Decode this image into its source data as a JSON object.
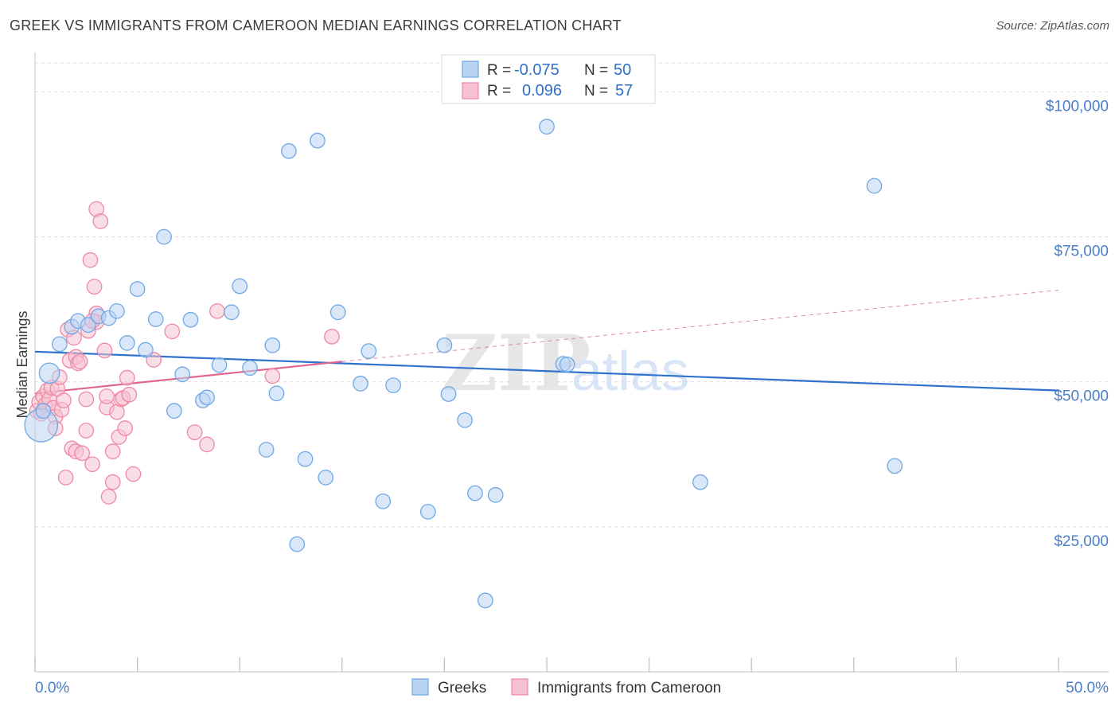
{
  "header": {
    "title": "GREEK VS IMMIGRANTS FROM CAMEROON MEDIAN EARNINGS CORRELATION CHART",
    "source": "Source: ZipAtlas.com"
  },
  "watermark": {
    "zip": "ZIP",
    "atlas": "atlas"
  },
  "colors": {
    "blue": "#6fa8e6",
    "blue_fill": "#b9d3f3",
    "blue_line": "#2f72cc",
    "pink": "#ee88a6",
    "pink_fill": "#f6c2d2",
    "pink_line": "#e0668f",
    "grid": "#d8d8d8",
    "axis_text": "#4a7ec9"
  },
  "stats_legend": {
    "rows": [
      {
        "r_label": "R =",
        "r_value": "-0.075",
        "n_label": "N =",
        "n_value": "50"
      },
      {
        "r_label": "R =",
        "r_value": "0.096",
        "n_label": "N =",
        "n_value": "57"
      }
    ]
  },
  "bottom_legend": [
    "Greeks",
    "Immigrants from Cameroon"
  ],
  "chart_data": {
    "type": "scatter",
    "title": "GREEK VS IMMIGRANTS FROM CAMEROON MEDIAN EARNINGS CORRELATION CHART",
    "xlabel": "",
    "ylabel": "Median Earnings",
    "xlim": [
      0,
      50
    ],
    "ylim": [
      0,
      105000
    ],
    "x_tick_labels": [
      "0.0%",
      "50.0%"
    ],
    "y_ticks": [
      25000,
      50000,
      75000,
      100000
    ],
    "y_tick_labels": [
      "$25,000",
      "$50,000",
      "$75,000",
      "$100,000"
    ],
    "series": [
      {
        "name": "Greeks",
        "color": "blue",
        "trend": {
          "x": [
            0,
            50
          ],
          "y": [
            55200,
            48500
          ],
          "dashed_from": null
        },
        "points": [
          [
            0.3,
            42500,
            18
          ],
          [
            0.7,
            51500,
            11
          ],
          [
            1.2,
            56500,
            8
          ],
          [
            1.8,
            59500,
            8
          ],
          [
            2.1,
            60500,
            8
          ],
          [
            2.6,
            59800,
            8
          ],
          [
            3.1,
            61300,
            8
          ],
          [
            3.6,
            61000,
            8
          ],
          [
            4.0,
            62200,
            8
          ],
          [
            4.5,
            56700,
            8
          ],
          [
            5.0,
            66000,
            8
          ],
          [
            5.4,
            55500,
            8
          ],
          [
            5.9,
            60800,
            8
          ],
          [
            6.3,
            75000,
            8
          ],
          [
            6.8,
            45000,
            8
          ],
          [
            7.2,
            51300,
            8
          ],
          [
            7.6,
            60700,
            8
          ],
          [
            8.2,
            46800,
            8
          ],
          [
            8.4,
            47300,
            8
          ],
          [
            9.0,
            52900,
            8
          ],
          [
            9.6,
            62000,
            8
          ],
          [
            10.0,
            66500,
            8
          ],
          [
            10.5,
            52400,
            8
          ],
          [
            11.3,
            38300,
            8
          ],
          [
            11.6,
            56300,
            8
          ],
          [
            11.8,
            48000,
            8
          ],
          [
            12.4,
            89800,
            8
          ],
          [
            12.8,
            22000,
            8
          ],
          [
            13.2,
            36700,
            8
          ],
          [
            13.8,
            91600,
            8
          ],
          [
            14.2,
            33500,
            8
          ],
          [
            14.8,
            62000,
            8
          ],
          [
            15.9,
            49700,
            8
          ],
          [
            16.3,
            55300,
            8
          ],
          [
            17.0,
            29400,
            8
          ],
          [
            17.5,
            49400,
            8
          ],
          [
            19.2,
            27600,
            8
          ],
          [
            20.0,
            56300,
            8
          ],
          [
            20.2,
            47900,
            8
          ],
          [
            21.0,
            43400,
            8
          ],
          [
            21.5,
            30800,
            8
          ],
          [
            22.0,
            12300,
            8
          ],
          [
            22.5,
            30500,
            8
          ],
          [
            25.0,
            94000,
            8
          ],
          [
            25.8,
            53100,
            8
          ],
          [
            26.0,
            53000,
            8
          ],
          [
            32.5,
            32700,
            8
          ],
          [
            41.0,
            83800,
            8
          ],
          [
            42.0,
            35500,
            8
          ],
          [
            0.4,
            45000,
            8
          ]
        ]
      },
      {
        "name": "Immigrants from Cameroon",
        "color": "pink",
        "trend": {
          "x": [
            0,
            15
          ],
          "y": [
            48000,
            53500
          ],
          "dashed_to": [
            50,
            65800
          ]
        },
        "points": [
          [
            0.1,
            45000,
            8
          ],
          [
            0.2,
            46500,
            8
          ],
          [
            0.3,
            44500,
            8
          ],
          [
            0.4,
            47500,
            8
          ],
          [
            0.5,
            46000,
            8
          ],
          [
            0.6,
            48500,
            8
          ],
          [
            0.7,
            47000,
            8
          ],
          [
            0.8,
            49000,
            8
          ],
          [
            0.9,
            45500,
            8
          ],
          [
            1.0,
            44000,
            8
          ],
          [
            1.1,
            48800,
            8
          ],
          [
            1.2,
            50800,
            8
          ],
          [
            1.3,
            45200,
            8
          ],
          [
            1.4,
            46800,
            8
          ],
          [
            1.5,
            33500,
            8
          ],
          [
            1.6,
            59000,
            8
          ],
          [
            1.7,
            53700,
            8
          ],
          [
            1.8,
            38500,
            8
          ],
          [
            1.9,
            57600,
            8
          ],
          [
            2.0,
            38000,
            8
          ],
          [
            2.0,
            54300,
            8
          ],
          [
            2.1,
            53200,
            8
          ],
          [
            2.2,
            53500,
            8
          ],
          [
            2.3,
            37700,
            8
          ],
          [
            2.5,
            41600,
            8
          ],
          [
            2.5,
            47000,
            8
          ],
          [
            2.6,
            58800,
            8
          ],
          [
            2.7,
            71000,
            8
          ],
          [
            2.8,
            35800,
            8
          ],
          [
            2.9,
            66400,
            8
          ],
          [
            3.0,
            61800,
            8
          ],
          [
            3.0,
            60300,
            8
          ],
          [
            2.8,
            60500,
            8
          ],
          [
            3.0,
            79800,
            8
          ],
          [
            3.2,
            77700,
            8
          ],
          [
            3.4,
            55400,
            8
          ],
          [
            3.5,
            45600,
            8
          ],
          [
            3.5,
            47500,
            8
          ],
          [
            3.6,
            30200,
            8
          ],
          [
            3.8,
            38000,
            8
          ],
          [
            3.8,
            32700,
            8
          ],
          [
            4.0,
            44800,
            8
          ],
          [
            4.1,
            40500,
            8
          ],
          [
            4.2,
            47000,
            8
          ],
          [
            4.3,
            47200,
            8
          ],
          [
            4.4,
            42000,
            8
          ],
          [
            4.5,
            50700,
            8
          ],
          [
            4.6,
            47800,
            8
          ],
          [
            4.8,
            34100,
            8
          ],
          [
            5.8,
            53800,
            8
          ],
          [
            6.7,
            58700,
            8
          ],
          [
            7.8,
            41300,
            8
          ],
          [
            8.4,
            39200,
            8
          ],
          [
            8.9,
            62200,
            8
          ],
          [
            11.6,
            51000,
            8
          ],
          [
            14.5,
            57800,
            8
          ],
          [
            1.0,
            42000,
            8
          ]
        ]
      }
    ]
  }
}
